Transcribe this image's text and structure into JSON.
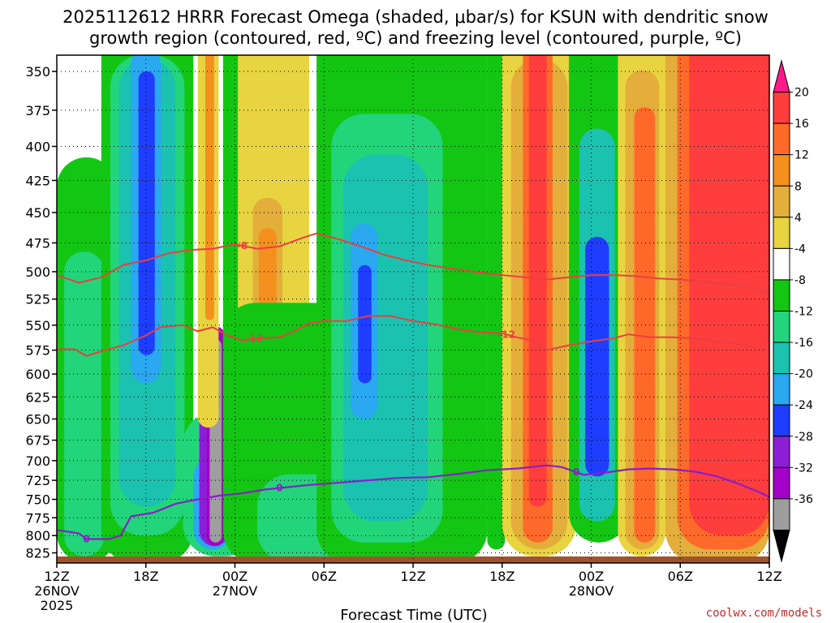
{
  "title_line1": "2025112612 HRRR Forecast Omega (shaded, μbar/s) for KSUN with dendritic snow",
  "title_line2": "growth region (contoured, red, ºC) and freezing level (contoured, purple, ºC)",
  "credit": "coolwx.com/models",
  "chart_data": {
    "type": "heatmap",
    "xlabel": "Forecast Time (UTC)",
    "x_ticks": [
      {
        "hour": 0,
        "label": "12Z",
        "sub": "26NOV",
        "sub2": "2025"
      },
      {
        "hour": 6,
        "label": "18Z",
        "sub": "",
        "sub2": ""
      },
      {
        "hour": 12,
        "label": "00Z",
        "sub": "27NOV",
        "sub2": ""
      },
      {
        "hour": 18,
        "label": "06Z",
        "sub": "",
        "sub2": ""
      },
      {
        "hour": 24,
        "label": "12Z",
        "sub": "",
        "sub2": ""
      },
      {
        "hour": 30,
        "label": "18Z",
        "sub": "",
        "sub2": ""
      },
      {
        "hour": 36,
        "label": "00Z",
        "sub": "28NOV",
        "sub2": ""
      },
      {
        "hour": 42,
        "label": "06Z",
        "sub": "",
        "sub2": ""
      },
      {
        "hour": 48,
        "label": "12Z",
        "sub": "",
        "sub2": ""
      }
    ],
    "xlim": [
      0,
      48
    ],
    "y_ticks": [
      350,
      375,
      400,
      425,
      450,
      475,
      500,
      525,
      550,
      575,
      600,
      625,
      650,
      675,
      700,
      725,
      750,
      775,
      800,
      825
    ],
    "ylim": [
      340,
      840
    ],
    "y_scale": "log",
    "colorbar": {
      "labels": [
        20,
        16,
        12,
        8,
        4,
        -4,
        -8,
        -12,
        -16,
        -20,
        -24,
        -28,
        -32,
        -36
      ],
      "colors": [
        "#ff1a8c",
        "#ff3d3d",
        "#ff6a2a",
        "#f4901e",
        "#e3ae3a",
        "#e8d440",
        "#ffffff",
        "#13c613",
        "#22d57a",
        "#1bc2b0",
        "#2aa8f0",
        "#1f3dff",
        "#8c1fd6",
        "#a300c8",
        "#9e9e9e",
        "#000000"
      ]
    },
    "omega_bands": [
      {
        "t0": 0.0,
        "t1": 4.0,
        "p0": 430,
        "p1": 840,
        "value": -8
      },
      {
        "t0": 0.5,
        "t1": 3.2,
        "p0": 500,
        "p1": 830,
        "value": -12
      },
      {
        "t0": 3.0,
        "t1": 9.2,
        "p0": 340,
        "p1": 840,
        "value": -8
      },
      {
        "t0": 3.6,
        "t1": 8.6,
        "p0": 360,
        "p1": 800,
        "value": -12
      },
      {
        "t0": 4.2,
        "t1": 8.0,
        "p0": 360,
        "p1": 760,
        "value": -16
      },
      {
        "t0": 5.0,
        "t1": 7.0,
        "p0": 345,
        "p1": 610,
        "value": -20
      },
      {
        "t0": 5.5,
        "t1": 6.6,
        "p0": 355,
        "p1": 580,
        "value": -24
      },
      {
        "t0": 8.5,
        "t1": 13.5,
        "p0": 680,
        "p1": 830,
        "value": -12
      },
      {
        "t0": 9.2,
        "t1": 11.8,
        "p0": 720,
        "p1": 820,
        "value": -20
      },
      {
        "t0": 9.6,
        "t1": 11.6,
        "p0": 640,
        "p1": 815,
        "value": -28
      },
      {
        "t0": 10.1,
        "t1": 11.3,
        "p0": 560,
        "p1": 815,
        "value": -32
      },
      {
        "t0": 10.3,
        "t1": 11.1,
        "p0": 570,
        "p1": 810,
        "value": -36
      },
      {
        "t0": 9.5,
        "t1": 10.9,
        "p0": 340,
        "p1": 660,
        "value": 4
      },
      {
        "t0": 10.0,
        "t1": 10.6,
        "p0": 340,
        "p1": 545,
        "value": 12
      },
      {
        "t0": 11.2,
        "t1": 12.5,
        "p0": 340,
        "p1": 640,
        "value": -8
      },
      {
        "t0": 12.2,
        "t1": 17.0,
        "p0": 340,
        "p1": 640,
        "value": 4
      },
      {
        "t0": 13.2,
        "t1": 15.2,
        "p0": 450,
        "p1": 630,
        "value": 8
      },
      {
        "t0": 13.6,
        "t1": 14.8,
        "p0": 470,
        "p1": 620,
        "value": 12
      },
      {
        "t0": 11.2,
        "t1": 23.5,
        "p0": 560,
        "p1": 840,
        "value": -8
      },
      {
        "t0": 13.5,
        "t1": 22.0,
        "p0": 760,
        "p1": 840,
        "value": -12
      },
      {
        "t0": 17.5,
        "t1": 29.0,
        "p0": 340,
        "p1": 840,
        "value": -8
      },
      {
        "t0": 18.5,
        "t1": 26.0,
        "p0": 400,
        "p1": 810,
        "value": -12
      },
      {
        "t0": 19.3,
        "t1": 25.0,
        "p0": 430,
        "p1": 780,
        "value": -16
      },
      {
        "t0": 19.8,
        "t1": 21.6,
        "p0": 470,
        "p1": 650,
        "value": -20
      },
      {
        "t0": 20.3,
        "t1": 21.2,
        "p0": 500,
        "p1": 610,
        "value": -24
      },
      {
        "t0": 29.0,
        "t1": 30.2,
        "p0": 340,
        "p1": 820,
        "value": -8
      },
      {
        "t0": 30.0,
        "t1": 35.0,
        "p0": 340,
        "p1": 830,
        "value": 4
      },
      {
        "t0": 30.6,
        "t1": 34.4,
        "p0": 360,
        "p1": 820,
        "value": 8
      },
      {
        "t0": 31.4,
        "t1": 33.4,
        "p0": 340,
        "p1": 810,
        "value": 16
      },
      {
        "t0": 31.8,
        "t1": 33.0,
        "p0": 340,
        "p1": 760,
        "value": 20
      },
      {
        "t0": 34.5,
        "t1": 38.5,
        "p0": 340,
        "p1": 810,
        "value": -8
      },
      {
        "t0": 35.2,
        "t1": 37.6,
        "p0": 400,
        "p1": 780,
        "value": -16
      },
      {
        "t0": 35.6,
        "t1": 37.2,
        "p0": 480,
        "p1": 720,
        "value": -24
      },
      {
        "t0": 37.8,
        "t1": 41.0,
        "p0": 340,
        "p1": 830,
        "value": 4
      },
      {
        "t0": 38.3,
        "t1": 40.6,
        "p0": 360,
        "p1": 820,
        "value": 8
      },
      {
        "t0": 38.9,
        "t1": 40.3,
        "p0": 380,
        "p1": 810,
        "value": 16
      },
      {
        "t0": 40.6,
        "t1": 42.4,
        "p0": 340,
        "p1": 620,
        "value": 4
      },
      {
        "t0": 41.0,
        "t1": 48.0,
        "p0": 340,
        "p1": 840,
        "value": 8
      },
      {
        "t0": 41.8,
        "t1": 48.0,
        "p0": 340,
        "p1": 820,
        "value": 16
      },
      {
        "t0": 42.6,
        "t1": 48.0,
        "p0": 340,
        "p1": 800,
        "value": 20
      }
    ],
    "dgz_contours": [
      {
        "label": "-8",
        "label_hour": 12.5,
        "points": [
          [
            0,
            503
          ],
          [
            1.5,
            510
          ],
          [
            3,
            505
          ],
          [
            4.5,
            494
          ],
          [
            6,
            490
          ],
          [
            7.5,
            484
          ],
          [
            9,
            481
          ],
          [
            10.5,
            480
          ],
          [
            12,
            476
          ],
          [
            13.5,
            480
          ],
          [
            15,
            478
          ],
          [
            16.5,
            471
          ],
          [
            17.5,
            467
          ],
          [
            19,
            472
          ],
          [
            20.5,
            478
          ],
          [
            22,
            485
          ],
          [
            23.5,
            490
          ],
          [
            25,
            494
          ],
          [
            26.5,
            497
          ],
          [
            28,
            500
          ],
          [
            30,
            503
          ],
          [
            31.5,
            505
          ],
          [
            33,
            507
          ],
          [
            34.5,
            505
          ],
          [
            36,
            503
          ],
          [
            37.5,
            503
          ],
          [
            39,
            504
          ],
          [
            40.5,
            506
          ],
          [
            42,
            507
          ],
          [
            43.5,
            509
          ],
          [
            45,
            511
          ],
          [
            46.5,
            514
          ],
          [
            48,
            519
          ]
        ]
      },
      {
        "label": "-12",
        "label_hour": 13.3,
        "points": [
          [
            0,
            574
          ],
          [
            1.2,
            574
          ],
          [
            2,
            581
          ],
          [
            3,
            576
          ],
          [
            4.5,
            570
          ],
          [
            6,
            560
          ],
          [
            7,
            552
          ],
          [
            8.5,
            550
          ],
          [
            9.5,
            556
          ],
          [
            10.5,
            552
          ],
          [
            11.5,
            560
          ],
          [
            12.5,
            565
          ],
          [
            13.5,
            563
          ],
          [
            15,
            562
          ],
          [
            16,
            556
          ],
          [
            17,
            548
          ],
          [
            18,
            546
          ],
          [
            19.5,
            546
          ],
          [
            21,
            541
          ],
          [
            22.5,
            541
          ],
          [
            24,
            546
          ],
          [
            25.5,
            549
          ],
          [
            27,
            554
          ],
          [
            28.5,
            557
          ],
          [
            30,
            558
          ],
          [
            31,
            562
          ],
          [
            32,
            565
          ],
          [
            33,
            575
          ],
          [
            34.5,
            570
          ],
          [
            36,
            566
          ],
          [
            37.5,
            563
          ],
          [
            38.5,
            559
          ],
          [
            40,
            562
          ],
          [
            41.5,
            562
          ],
          [
            43,
            563
          ],
          [
            44.5,
            566
          ],
          [
            46,
            569
          ],
          [
            48,
            575
          ]
        ]
      },
      {
        "label": "-12",
        "label_hour": 30.3,
        "points": []
      }
    ],
    "freezing_contour": {
      "label": "0",
      "label_hour": 15.0,
      "label2_hour": 35.0,
      "points": [
        [
          0,
          792
        ],
        [
          1.5,
          797
        ],
        [
          2,
          805
        ],
        [
          3.5,
          805
        ],
        [
          4.3,
          800
        ],
        [
          5,
          773
        ],
        [
          6.5,
          768
        ],
        [
          8,
          756
        ],
        [
          9.5,
          750
        ],
        [
          11,
          745
        ],
        [
          12.5,
          742
        ],
        [
          14,
          737
        ],
        [
          15.5,
          734
        ],
        [
          17,
          731
        ],
        [
          19,
          728
        ],
        [
          21,
          725
        ],
        [
          23,
          722
        ],
        [
          25,
          721
        ],
        [
          27,
          717
        ],
        [
          29,
          712
        ],
        [
          31,
          710
        ],
        [
          33,
          706
        ],
        [
          34,
          708
        ],
        [
          35.5,
          718
        ],
        [
          37,
          715
        ],
        [
          38.5,
          711
        ],
        [
          40,
          710
        ],
        [
          41.5,
          711
        ],
        [
          43,
          714
        ],
        [
          44.5,
          720
        ],
        [
          46,
          730
        ],
        [
          47.5,
          742
        ],
        [
          48,
          747
        ]
      ]
    }
  }
}
